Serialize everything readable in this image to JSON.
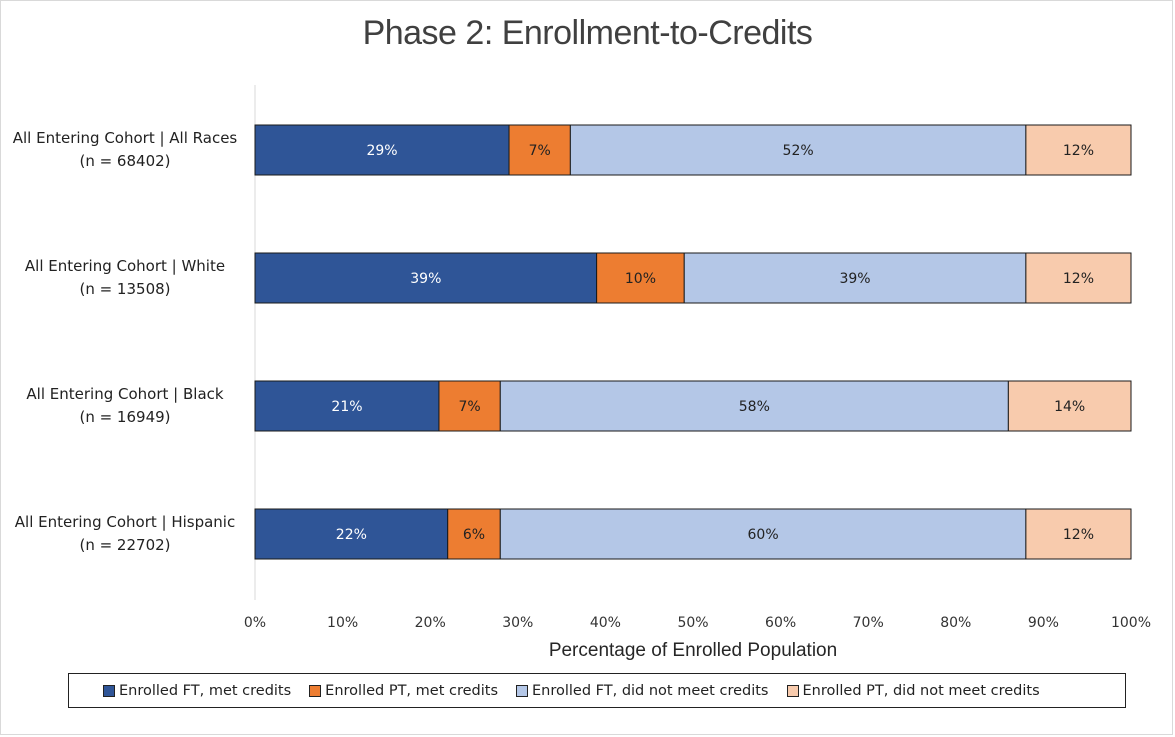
{
  "chart_data": {
    "type": "bar",
    "orientation": "horizontal",
    "stacked": true,
    "title": "Phase 2: Enrollment-to-Credits",
    "xlabel": "Percentage of Enrolled Population",
    "ylabel": "",
    "xlim": [
      0,
      100
    ],
    "x_ticks": [
      "0%",
      "10%",
      "20%",
      "30%",
      "40%",
      "50%",
      "60%",
      "70%",
      "80%",
      "90%",
      "100%"
    ],
    "categories": [
      {
        "line1": "All Entering Cohort | All Races",
        "line2": "(n = 68402)"
      },
      {
        "line1": "All Entering Cohort | White",
        "line2": "(n = 13508)"
      },
      {
        "line1": "All Entering Cohort | Black",
        "line2": "(n = 16949)"
      },
      {
        "line1": "All Entering Cohort | Hispanic",
        "line2": "(n = 22702)"
      }
    ],
    "series": [
      {
        "name": "Enrolled FT, met credits",
        "color": "#2f5597",
        "label_color": "#ffffff",
        "values": [
          29,
          39,
          21,
          22
        ],
        "labels": [
          "29%",
          "39%",
          "21%",
          "22%"
        ]
      },
      {
        "name": "Enrolled PT, met credits",
        "color": "#ed7d31",
        "label_color": "#222222",
        "values": [
          7,
          10,
          7,
          6
        ],
        "labels": [
          "7%",
          "10%",
          "7%",
          "6%"
        ]
      },
      {
        "name": "Enrolled FT, did not meet credits",
        "color": "#b4c7e7",
        "label_color": "#222222",
        "values": [
          52,
          39,
          58,
          60
        ],
        "labels": [
          "52%",
          "39%",
          "58%",
          "60%"
        ]
      },
      {
        "name": "Enrolled PT, did not meet credits",
        "color": "#f8cbad",
        "label_color": "#222222",
        "values": [
          12,
          12,
          14,
          12
        ],
        "labels": [
          "12%",
          "12%",
          "14%",
          "12%"
        ]
      }
    ],
    "grid": false,
    "legend_position": "bottom"
  }
}
